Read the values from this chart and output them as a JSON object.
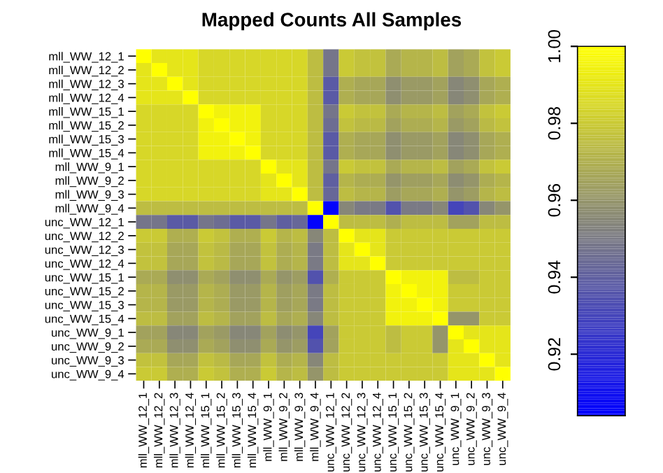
{
  "chart_data": {
    "type": "heatmap",
    "title": "Mapped Counts All Samples",
    "categories": [
      "mll_WW_12_1",
      "mll_WW_12_2",
      "mll_WW_12_3",
      "mll_WW_12_4",
      "mll_WW_15_1",
      "mll_WW_15_2",
      "mll_WW_15_3",
      "mll_WW_15_4",
      "mll_WW_9_1",
      "mll_WW_9_2",
      "mll_WW_9_3",
      "mll_WW_9_4",
      "unc_WW_12_1",
      "unc_WW_12_2",
      "unc_WW_12_3",
      "unc_WW_12_4",
      "unc_WW_15_1",
      "unc_WW_15_2",
      "unc_WW_15_3",
      "unc_WW_15_4",
      "unc_WW_9_1",
      "unc_WW_9_2",
      "unc_WW_9_3",
      "unc_WW_9_4"
    ],
    "y_categories": [
      "mll_WW_12_1",
      "mll_WW_12_2",
      "mll_WW_12_3",
      "mll_WW_12_4",
      "mll_WW_15_1",
      "mll_WW_15_2",
      "mll_WW_15_3",
      "mll_WW_15_4",
      "mll_WW_9_1",
      "mll_WW_9_2",
      "mll_WW_9_3",
      "mll_WW_9_4",
      "unc_WW_12_1",
      "unc_WW_12_2",
      "unc_WW_12_3",
      "unc_WW_12_4",
      "unc_WW_15_1",
      "unc_WW_15_2",
      "unc_WW_15_3",
      "unc_WW_15_4",
      "unc_WW_9_1",
      "unc_WW_9_2",
      "unc_WW_9_3",
      "unc_WW_9_4"
    ],
    "cells": [
      [
        1,
        0.99,
        0.99,
        0.99,
        0.985,
        0.985,
        0.985,
        0.985,
        0.985,
        0.985,
        0.985,
        0.975,
        0.948,
        0.98,
        0.977,
        0.977,
        0.968,
        0.972,
        0.972,
        0.975,
        0.965,
        0.968,
        0.977,
        0.98
      ],
      [
        0.99,
        1,
        0.99,
        0.99,
        0.985,
        0.985,
        0.985,
        0.985,
        0.985,
        0.985,
        0.985,
        0.975,
        0.948,
        0.98,
        0.977,
        0.977,
        0.968,
        0.972,
        0.972,
        0.975,
        0.965,
        0.968,
        0.977,
        0.98
      ],
      [
        0.99,
        0.99,
        1,
        0.99,
        0.985,
        0.985,
        0.985,
        0.985,
        0.985,
        0.985,
        0.985,
        0.975,
        0.938,
        0.97,
        0.967,
        0.967,
        0.958,
        0.962,
        0.962,
        0.965,
        0.955,
        0.958,
        0.967,
        0.97
      ],
      [
        0.99,
        0.99,
        0.99,
        1,
        0.985,
        0.985,
        0.985,
        0.985,
        0.985,
        0.985,
        0.985,
        0.975,
        0.938,
        0.97,
        0.967,
        0.967,
        0.958,
        0.962,
        0.962,
        0.965,
        0.955,
        0.958,
        0.967,
        0.97
      ],
      [
        0.985,
        0.985,
        0.985,
        0.985,
        1,
        0.995,
        0.995,
        0.995,
        0.985,
        0.985,
        0.985,
        0.975,
        0.948,
        0.98,
        0.977,
        0.977,
        0.968,
        0.972,
        0.972,
        0.975,
        0.965,
        0.968,
        0.977,
        0.98
      ],
      [
        0.985,
        0.985,
        0.985,
        0.985,
        0.995,
        1,
        0.995,
        0.995,
        0.985,
        0.985,
        0.985,
        0.975,
        0.945,
        0.977,
        0.974,
        0.974,
        0.965,
        0.969,
        0.969,
        0.972,
        0.962,
        0.965,
        0.974,
        0.977
      ],
      [
        0.985,
        0.985,
        0.985,
        0.985,
        0.995,
        0.995,
        1,
        0.995,
        0.985,
        0.985,
        0.985,
        0.975,
        0.938,
        0.97,
        0.967,
        0.967,
        0.958,
        0.962,
        0.962,
        0.965,
        0.955,
        0.958,
        0.967,
        0.97
      ],
      [
        0.985,
        0.985,
        0.985,
        0.985,
        0.995,
        0.995,
        0.995,
        1,
        0.985,
        0.985,
        0.985,
        0.975,
        0.938,
        0.97,
        0.967,
        0.967,
        0.958,
        0.962,
        0.962,
        0.965,
        0.955,
        0.958,
        0.967,
        0.97
      ],
      [
        0.985,
        0.985,
        0.985,
        0.985,
        0.985,
        0.985,
        0.985,
        0.985,
        1,
        0.99,
        0.99,
        0.975,
        0.948,
        0.98,
        0.977,
        0.977,
        0.968,
        0.972,
        0.972,
        0.975,
        0.965,
        0.968,
        0.977,
        0.98
      ],
      [
        0.985,
        0.985,
        0.985,
        0.985,
        0.985,
        0.985,
        0.985,
        0.985,
        0.99,
        1,
        0.99,
        0.975,
        0.94,
        0.972,
        0.969,
        0.969,
        0.96,
        0.964,
        0.964,
        0.967,
        0.957,
        0.96,
        0.969,
        0.972
      ],
      [
        0.985,
        0.985,
        0.985,
        0.985,
        0.985,
        0.985,
        0.985,
        0.985,
        0.99,
        0.99,
        1,
        0.975,
        0.943,
        0.975,
        0.972,
        0.972,
        0.963,
        0.967,
        0.967,
        0.97,
        0.96,
        0.963,
        0.972,
        0.975
      ],
      [
        0.975,
        0.975,
        0.975,
        0.975,
        0.975,
        0.975,
        0.975,
        0.975,
        0.975,
        0.975,
        0.975,
        1,
        0.905,
        0.955,
        0.95,
        0.95,
        0.935,
        0.95,
        0.95,
        0.955,
        0.93,
        0.935,
        0.955,
        0.96
      ],
      [
        0.948,
        0.948,
        0.938,
        0.938,
        0.948,
        0.945,
        0.938,
        0.938,
        0.948,
        0.94,
        0.943,
        0.905,
        1,
        0.975,
        0.975,
        0.975,
        0.97,
        0.975,
        0.975,
        0.975,
        0.965,
        0.965,
        0.975,
        0.975
      ],
      [
        0.98,
        0.98,
        0.97,
        0.97,
        0.98,
        0.977,
        0.97,
        0.97,
        0.98,
        0.972,
        0.975,
        0.955,
        0.975,
        1,
        0.99,
        0.99,
        0.98,
        0.98,
        0.98,
        0.98,
        0.98,
        0.98,
        0.98,
        0.98
      ],
      [
        0.977,
        0.977,
        0.967,
        0.967,
        0.977,
        0.974,
        0.967,
        0.967,
        0.977,
        0.969,
        0.972,
        0.95,
        0.975,
        0.99,
        1,
        0.99,
        0.98,
        0.98,
        0.98,
        0.98,
        0.98,
        0.98,
        0.98,
        0.98
      ],
      [
        0.977,
        0.977,
        0.967,
        0.967,
        0.977,
        0.974,
        0.967,
        0.967,
        0.977,
        0.969,
        0.972,
        0.95,
        0.975,
        0.99,
        0.99,
        1,
        0.98,
        0.98,
        0.98,
        0.98,
        0.98,
        0.98,
        0.98,
        0.98
      ],
      [
        0.968,
        0.968,
        0.958,
        0.958,
        0.968,
        0.965,
        0.958,
        0.958,
        0.968,
        0.96,
        0.963,
        0.935,
        0.97,
        0.98,
        0.98,
        0.98,
        1,
        0.995,
        0.995,
        0.995,
        0.975,
        0.975,
        0.98,
        0.98
      ],
      [
        0.972,
        0.972,
        0.962,
        0.962,
        0.972,
        0.969,
        0.962,
        0.962,
        0.972,
        0.964,
        0.967,
        0.95,
        0.975,
        0.98,
        0.98,
        0.98,
        0.995,
        1,
        0.995,
        0.995,
        0.98,
        0.98,
        0.98,
        0.98
      ],
      [
        0.972,
        0.972,
        0.962,
        0.962,
        0.972,
        0.969,
        0.962,
        0.962,
        0.972,
        0.964,
        0.967,
        0.95,
        0.975,
        0.98,
        0.98,
        0.98,
        0.995,
        0.995,
        1,
        0.995,
        0.98,
        0.98,
        0.98,
        0.98
      ],
      [
        0.975,
        0.975,
        0.965,
        0.965,
        0.975,
        0.972,
        0.965,
        0.965,
        0.975,
        0.967,
        0.97,
        0.955,
        0.975,
        0.98,
        0.98,
        0.98,
        0.995,
        0.995,
        0.995,
        1,
        0.96,
        0.96,
        0.98,
        0.98
      ],
      [
        0.965,
        0.965,
        0.955,
        0.955,
        0.965,
        0.962,
        0.955,
        0.955,
        0.965,
        0.957,
        0.96,
        0.93,
        0.965,
        0.98,
        0.98,
        0.98,
        0.975,
        0.98,
        0.98,
        0.96,
        1,
        0.99,
        0.99,
        0.99
      ],
      [
        0.968,
        0.968,
        0.958,
        0.958,
        0.968,
        0.965,
        0.958,
        0.958,
        0.968,
        0.96,
        0.963,
        0.935,
        0.965,
        0.98,
        0.98,
        0.98,
        0.975,
        0.98,
        0.98,
        0.96,
        0.99,
        1,
        0.99,
        0.99
      ],
      [
        0.977,
        0.977,
        0.967,
        0.967,
        0.977,
        0.974,
        0.967,
        0.967,
        0.977,
        0.969,
        0.972,
        0.955,
        0.975,
        0.98,
        0.98,
        0.98,
        0.98,
        0.98,
        0.98,
        0.98,
        0.99,
        0.99,
        1,
        0.99
      ],
      [
        0.98,
        0.98,
        0.97,
        0.97,
        0.98,
        0.977,
        0.97,
        0.97,
        0.98,
        0.972,
        0.975,
        0.96,
        0.975,
        0.98,
        0.98,
        0.98,
        0.98,
        0.98,
        0.98,
        0.98,
        0.99,
        0.99,
        0.99,
        1
      ]
    ],
    "colors": [
      "#0000ff",
      "#808080",
      "#ffff00"
    ],
    "clim": [
      0.904,
      1.0
    ],
    "cticks": [
      0.92,
      0.94,
      0.96,
      0.98,
      {
        "value": 1.0,
        "label": "1.00"
      }
    ]
  }
}
